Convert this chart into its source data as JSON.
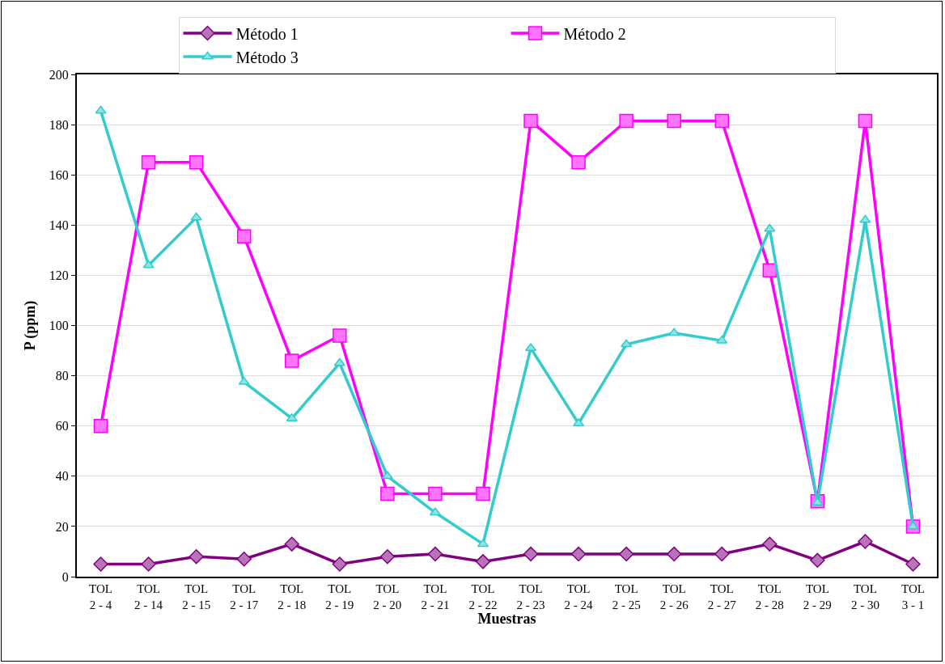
{
  "chart_data": {
    "type": "line",
    "xlabel": "Muestras",
    "ylabel": "P (ppm)",
    "categories": [
      "TOL\n2 - 4",
      "TOL\n2 - 14",
      "TOL\n2 - 15",
      "TOL\n2 - 17",
      "TOL\n2 - 18",
      "TOL\n2 - 19",
      "TOL\n2 - 20",
      "TOL\n2 - 21",
      "TOL\n2 - 22",
      "TOL\n2 - 23",
      "TOL\n2 - 24",
      "TOL\n2 - 25",
      "TOL\n2 - 26",
      "TOL\n2 - 27",
      "TOL\n2 - 28",
      "TOL\n2 - 29",
      "TOL\n2 - 30",
      "TOL\n3 - 1"
    ],
    "series": [
      {
        "name": "Método 1",
        "color": "#800080",
        "marker": "diamond",
        "values": [
          5,
          5,
          8,
          7,
          13,
          5,
          8,
          9,
          6,
          9,
          9,
          9,
          9,
          9,
          13,
          6.5,
          14,
          5
        ]
      },
      {
        "name": "Método 2",
        "color": "#ff00ff",
        "marker": "square",
        "values": [
          60,
          165,
          165,
          135.5,
          86,
          96,
          33,
          33,
          33,
          181.5,
          165,
          181.5,
          181.5,
          181.5,
          122,
          30,
          181.5,
          20
        ]
      },
      {
        "name": "Método 3",
        "color": "#33cccc",
        "marker": "triangle",
        "values": [
          185.5,
          124,
          143,
          77.5,
          63,
          85,
          40,
          25.5,
          13,
          91,
          61,
          92.5,
          97,
          94,
          138.5,
          29.5,
          142,
          20
        ]
      }
    ],
    "ylim": [
      0,
      200
    ],
    "yticks": [
      0,
      20,
      40,
      60,
      80,
      100,
      120,
      140,
      160,
      180,
      200
    ],
    "grid": "y",
    "legend": "top",
    "line_style": "solid"
  }
}
